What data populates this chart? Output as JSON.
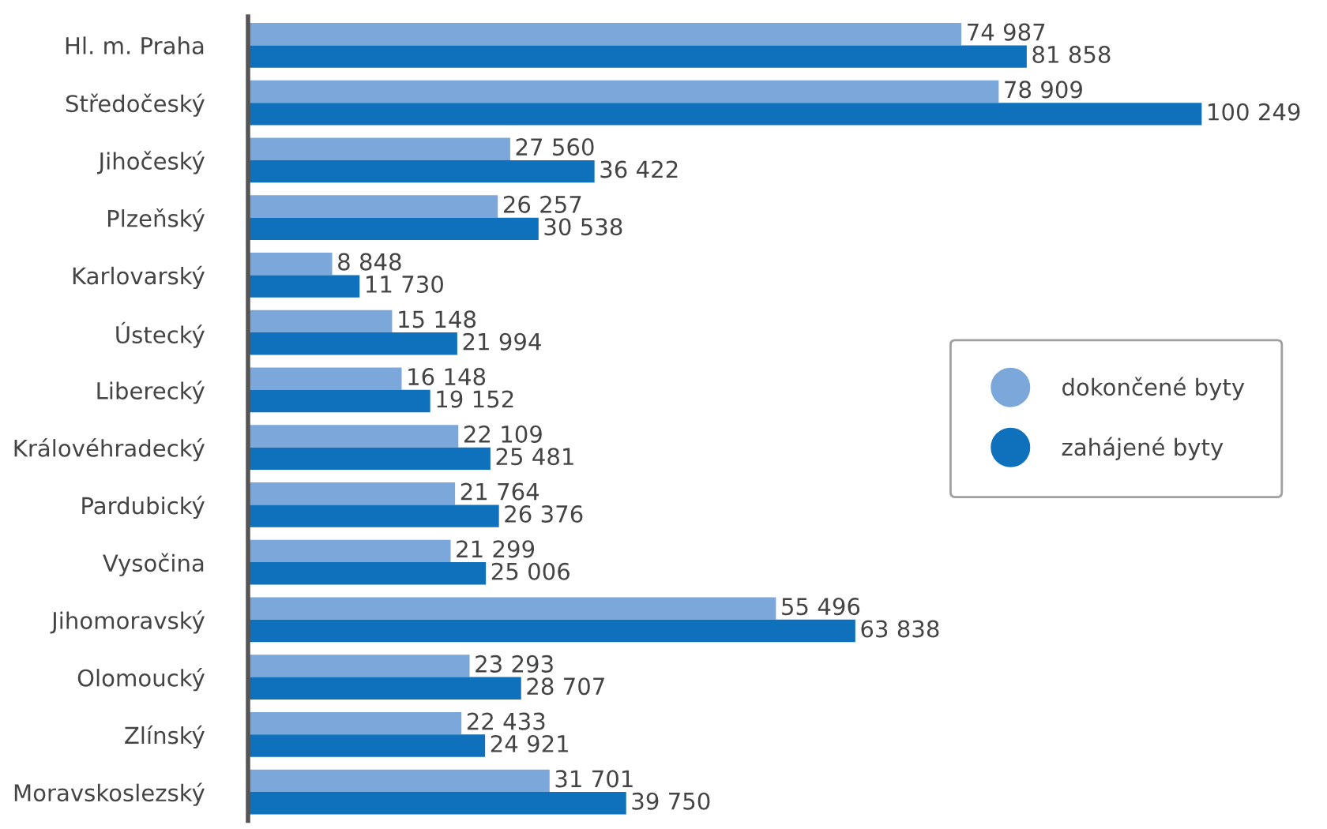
{
  "chart_data": {
    "type": "bar",
    "orientation": "horizontal",
    "categories": [
      "Hl. m. Praha",
      "Středočeský",
      "Jihočeský",
      "Plzeňský",
      "Karlovarský",
      "Ústecký",
      "Liberecký",
      "Královéhradecký",
      "Pardubický",
      "Vysočina",
      "Jihomoravský",
      "Olomoucký",
      "Zlínský",
      "Moravskoslezský"
    ],
    "series": [
      {
        "name": "dokončené byty",
        "color": "#7ba7da",
        "values": [
          74987,
          78909,
          27560,
          26257,
          8848,
          15148,
          16148,
          22109,
          21764,
          21299,
          55496,
          23293,
          22433,
          31701
        ],
        "value_labels": [
          "74 987",
          "78 909",
          "27 560",
          "26 257",
          "8 848",
          "15 148",
          "16 148",
          "22 109",
          "21 764",
          "21 299",
          "55 496",
          "23 293",
          "22 433",
          "31 701"
        ]
      },
      {
        "name": "zahájené byty",
        "color": "#0f71bb",
        "values": [
          81858,
          100249,
          36422,
          30538,
          11730,
          21994,
          19152,
          25481,
          26376,
          25006,
          63838,
          28707,
          24921,
          39750
        ],
        "value_labels": [
          "81 858",
          "100 249",
          "36 422",
          "30 538",
          "11 730",
          "21 994",
          "19 152",
          "25 481",
          "26 376",
          "25 006",
          "63 838",
          "28 707",
          "24 921",
          "39 750"
        ]
      }
    ],
    "tick_labels": "y",
    "grid": false,
    "legend": "right",
    "marker": "circle"
  }
}
